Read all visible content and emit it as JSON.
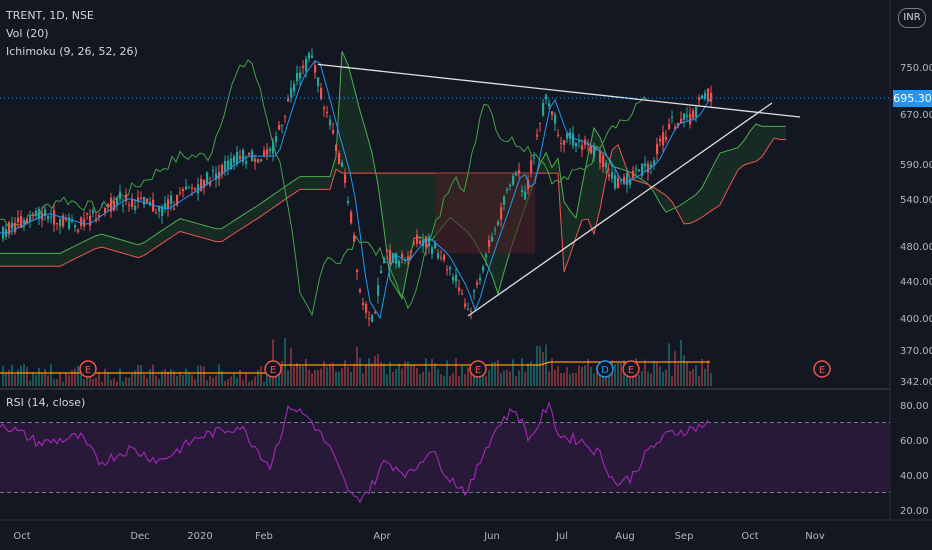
{
  "header": {
    "symbol_line": "TRENT, 1D, NSE",
    "volume_indicator": "Vol (20)",
    "ichimoku_indicator": "Ichimoku (9, 26, 52, 26)",
    "currency": "INR"
  },
  "rsi": {
    "label": "RSI (14, close)",
    "levels": [
      20,
      40,
      60,
      80
    ],
    "upper_band": 70,
    "lower_band": 30
  },
  "price_axis": {
    "ticks": [
      "750.00",
      "670.00",
      "590.00",
      "540.00",
      "480.00",
      "440.00",
      "400.00",
      "370.00",
      "342.00"
    ],
    "rsi_ticks": [
      "80.00",
      "60.00",
      "40.00",
      "20.00"
    ]
  },
  "last_price": "695.30",
  "time_axis": [
    "Oct",
    "Dec",
    "2020",
    "Feb",
    "Apr",
    "Jun",
    "Jul",
    "Aug",
    "Sep",
    "Oct",
    "Nov"
  ],
  "earnings_markers": [
    "E",
    "E",
    "E",
    "D",
    "E",
    "E"
  ],
  "colors": {
    "background": "#131722",
    "up_candle": "#26a69a",
    "down_candle": "#ef5350",
    "rsi_line": "#9c27b0",
    "cloud_green": "#4caf50",
    "cloud_red": "#ef5350",
    "last_price": "#2196f3"
  },
  "chart_data": {
    "type": "candlestick",
    "title": "TRENT, 1D, NSE",
    "x": [
      "2019-10",
      "2019-11",
      "2019-12",
      "2020-01",
      "2020-02",
      "2020-03",
      "2020-04",
      "2020-05",
      "2020-06",
      "2020-07",
      "2020-08",
      "2020-09"
    ],
    "close_approx": [
      505,
      520,
      545,
      565,
      740,
      420,
      465,
      430,
      575,
      580,
      565,
      695.3
    ],
    "ylim": [
      342,
      790
    ],
    "scale": "log",
    "annotations": [
      "descending trendline from Feb high",
      "ascending trendline from May low",
      "symmetrical triangle"
    ],
    "rsi_approx": [
      62,
      55,
      45,
      48,
      85,
      25,
      42,
      30,
      80,
      65,
      40,
      70
    ]
  }
}
